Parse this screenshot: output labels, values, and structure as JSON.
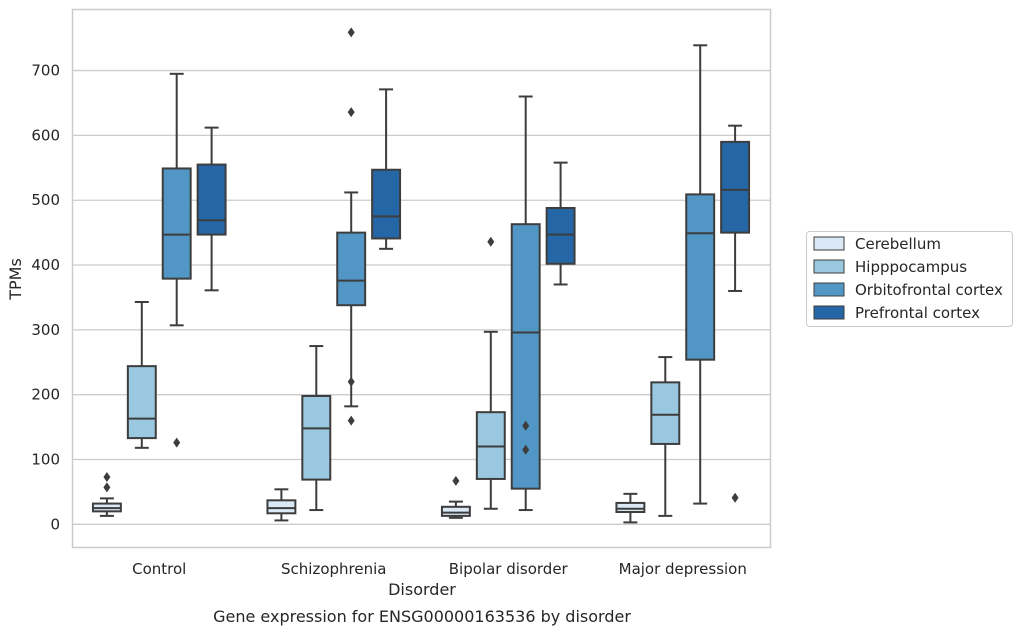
{
  "chart_data": {
    "type": "box",
    "title": "Gene expression for ENSG00000163536 by disorder",
    "xlabel": "Disorder",
    "ylabel": "TPMs",
    "ylim": [
      -35,
      795
    ],
    "yticks": [
      0,
      100,
      200,
      300,
      400,
      500,
      600,
      700
    ],
    "grid": "horizontal",
    "legend_position": "right",
    "categories": [
      "Control",
      "Schizophrenia",
      "Bipolar disorder",
      "Major depression"
    ],
    "series": [
      {
        "name": "Cerebellum",
        "color": "#dbe9f6",
        "boxes": [
          {
            "whislo": 13,
            "q1": 20,
            "med": 25,
            "q3": 32,
            "whishi": 40,
            "fliers": [
              57,
              73
            ]
          },
          {
            "whislo": 6,
            "q1": 17,
            "med": 25,
            "q3": 37,
            "whishi": 54,
            "fliers": []
          },
          {
            "whislo": 10,
            "q1": 13,
            "med": 18,
            "q3": 27,
            "whishi": 35,
            "fliers": [
              67
            ]
          },
          {
            "whislo": 3,
            "q1": 19,
            "med": 24,
            "q3": 33,
            "whishi": 47,
            "fliers": []
          }
        ]
      },
      {
        "name": "Hipppocampus",
        "color": "#9ac8e0",
        "boxes": [
          {
            "whislo": 118,
            "q1": 133,
            "med": 163,
            "q3": 244,
            "whishi": 343,
            "fliers": []
          },
          {
            "whislo": 22,
            "q1": 69,
            "med": 148,
            "q3": 198,
            "whishi": 275,
            "fliers": []
          },
          {
            "whislo": 24,
            "q1": 70,
            "med": 120,
            "q3": 173,
            "whishi": 297,
            "fliers": [
              436
            ]
          },
          {
            "whislo": 13,
            "q1": 124,
            "med": 169,
            "q3": 219,
            "whishi": 258,
            "fliers": []
          }
        ]
      },
      {
        "name": "Orbitofrontal cortex",
        "color": "#5296c6",
        "boxes": [
          {
            "whislo": 307,
            "q1": 379,
            "med": 447,
            "q3": 549,
            "whishi": 695,
            "fliers": [
              126
            ]
          },
          {
            "whislo": 182,
            "q1": 338,
            "med": 376,
            "q3": 450,
            "whishi": 512,
            "fliers": [
              160,
              220,
              636,
              759
            ]
          },
          {
            "whislo": 22,
            "q1": 55,
            "med": 296,
            "q3": 463,
            "whishi": 660,
            "fliers": [
              115,
              152
            ]
          },
          {
            "whislo": 32,
            "q1": 254,
            "med": 449,
            "q3": 509,
            "whishi": 739,
            "fliers": []
          }
        ]
      },
      {
        "name": "Prefrontal cortex",
        "color": "#2466a6",
        "boxes": [
          {
            "whislo": 361,
            "q1": 447,
            "med": 469,
            "q3": 555,
            "whishi": 612,
            "fliers": []
          },
          {
            "whislo": 425,
            "q1": 441,
            "med": 475,
            "q3": 547,
            "whishi": 671,
            "fliers": []
          },
          {
            "whislo": 370,
            "q1": 402,
            "med": 447,
            "q3": 488,
            "whishi": 558,
            "fliers": []
          },
          {
            "whislo": 360,
            "q1": 450,
            "med": 516,
            "q3": 590,
            "whishi": 615,
            "fliers": [
              41
            ]
          }
        ]
      }
    ]
  }
}
